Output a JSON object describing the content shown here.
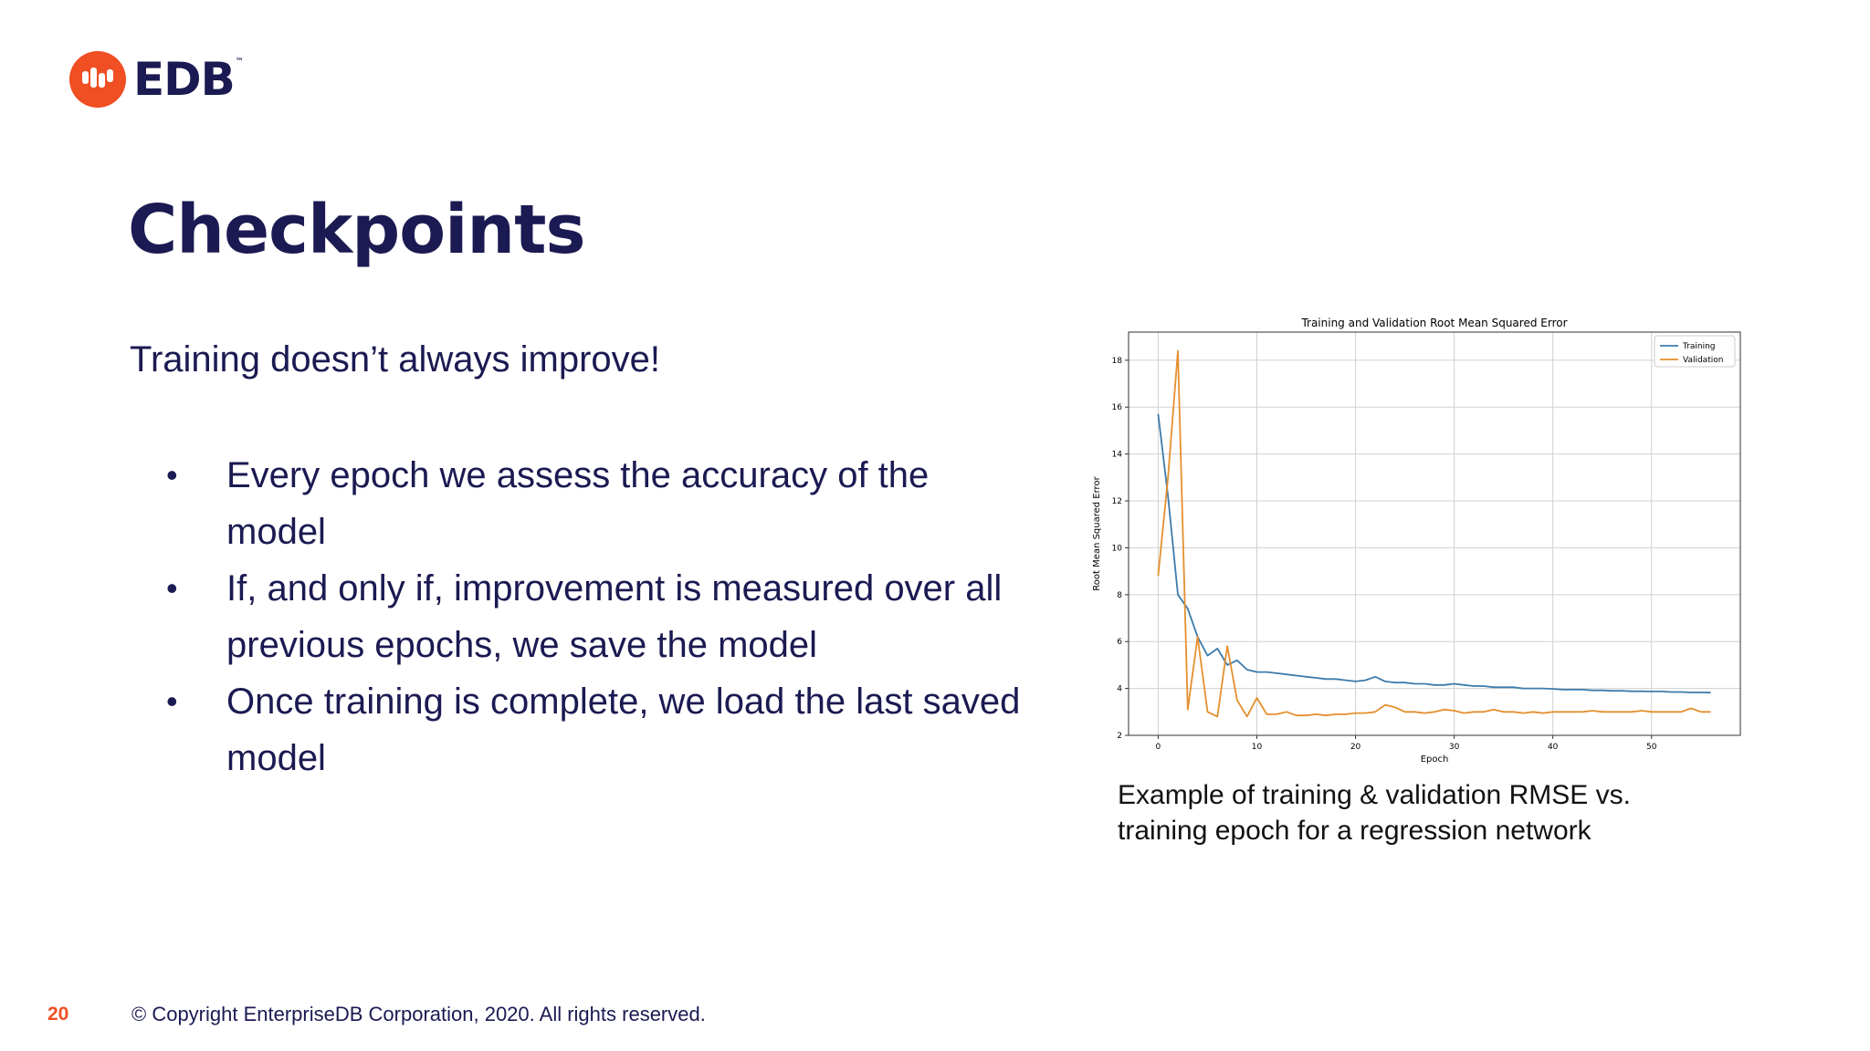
{
  "brand": {
    "name": "EDB",
    "tm": "™",
    "accent": "#f04e23",
    "navy": "#1b1a52"
  },
  "slide": {
    "title": "Checkpoints",
    "subtitle": "Training doesn’t always improve!",
    "bullets": [
      "Every epoch we assess the accuracy of the model",
      "If, and only if, improvement is measured over all previous epochs, we save the model",
      "Once training is complete, we load the last saved model"
    ],
    "caption": "Example of training & validation RMSE vs. training epoch for a regression network",
    "bullet_glyph": "•"
  },
  "footer": {
    "page_number": "20",
    "copyright": "© Copyright EnterpriseDB Corporation, 2020. All rights reserved."
  },
  "chart_data": {
    "type": "line",
    "title": "Training and Validation Root Mean Squared Error",
    "xlabel": "Epoch",
    "ylabel": "Root Mean Squared Error",
    "xlim": [
      -3,
      59
    ],
    "ylim": [
      2,
      19.2
    ],
    "xticks": [
      0,
      10,
      20,
      30,
      40,
      50
    ],
    "yticks": [
      2,
      4,
      6,
      8,
      10,
      12,
      14,
      16,
      18
    ],
    "grid": true,
    "legend": "top-right",
    "x": [
      0,
      1,
      2,
      3,
      4,
      5,
      6,
      7,
      8,
      9,
      10,
      11,
      12,
      13,
      14,
      15,
      16,
      17,
      18,
      19,
      20,
      21,
      22,
      23,
      24,
      25,
      26,
      27,
      28,
      29,
      30,
      31,
      32,
      33,
      34,
      35,
      36,
      37,
      38,
      39,
      40,
      41,
      42,
      43,
      44,
      45,
      46,
      47,
      48,
      49,
      50,
      51,
      52,
      53,
      54,
      55,
      56
    ],
    "series": [
      {
        "name": "Training",
        "color": "#3d7bab",
        "values": [
          15.7,
          12.2,
          8.0,
          7.4,
          6.2,
          5.4,
          5.7,
          5.0,
          5.2,
          4.8,
          4.7,
          4.7,
          4.65,
          4.6,
          4.55,
          4.5,
          4.45,
          4.4,
          4.4,
          4.35,
          4.3,
          4.35,
          4.5,
          4.3,
          4.25,
          4.25,
          4.2,
          4.2,
          4.15,
          4.15,
          4.2,
          4.15,
          4.1,
          4.1,
          4.05,
          4.05,
          4.05,
          4.0,
          4.0,
          4.0,
          3.98,
          3.95,
          3.95,
          3.95,
          3.92,
          3.92,
          3.9,
          3.9,
          3.88,
          3.88,
          3.87,
          3.87,
          3.85,
          3.85,
          3.83,
          3.83,
          3.82
        ]
      },
      {
        "name": "Validation",
        "color": "#e58f2e",
        "values": [
          8.8,
          13.0,
          18.4,
          3.1,
          6.2,
          3.0,
          2.8,
          5.8,
          3.5,
          2.8,
          3.6,
          2.9,
          2.9,
          3.0,
          2.85,
          2.85,
          2.9,
          2.85,
          2.9,
          2.9,
          2.95,
          2.95,
          3.0,
          3.3,
          3.2,
          3.0,
          3.0,
          2.95,
          3.0,
          3.1,
          3.05,
          2.95,
          3.0,
          3.0,
          3.1,
          3.0,
          3.0,
          2.95,
          3.0,
          2.95,
          3.0,
          3.0,
          3.0,
          3.0,
          3.05,
          3.0,
          3.0,
          3.0,
          3.0,
          3.05,
          3.0,
          3.0,
          3.0,
          3.0,
          3.15,
          3.0,
          3.0
        ]
      }
    ]
  }
}
